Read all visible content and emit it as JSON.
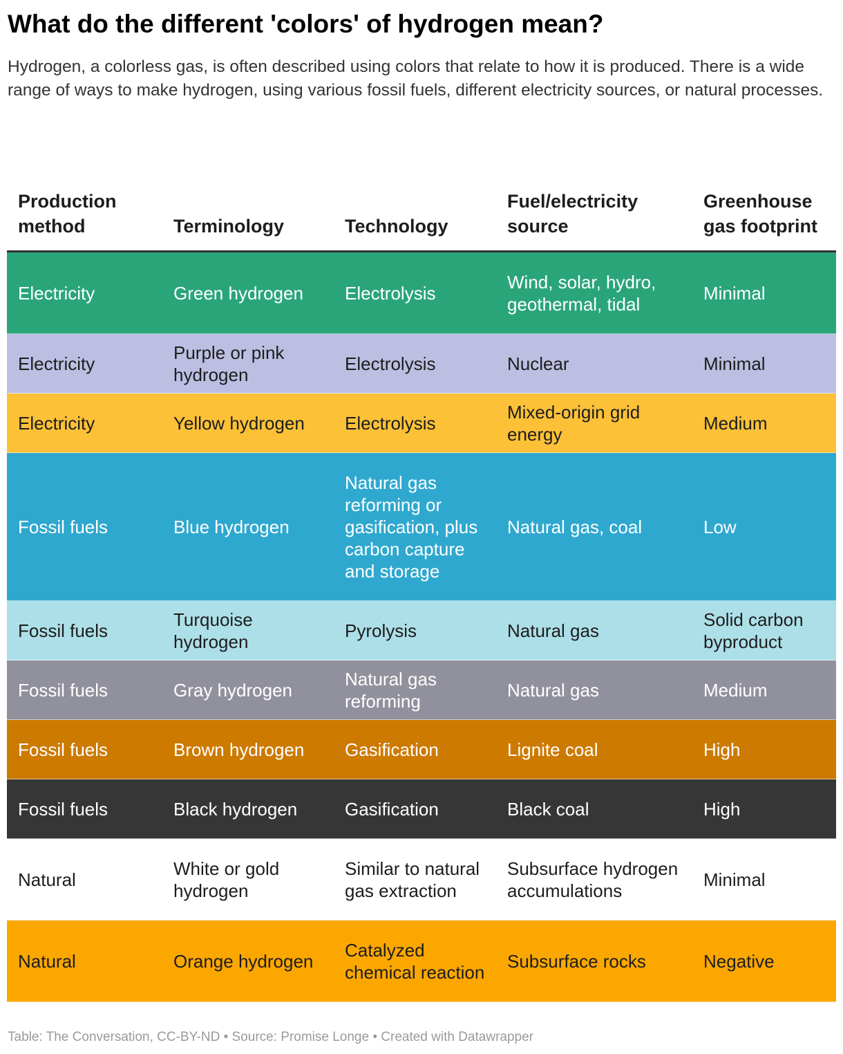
{
  "title": "What do the different 'colors' of hydrogen mean?",
  "subtitle": "Hydrogen, a colorless gas, is often described using colors that relate to how it is produced. There is a wide range of ways to make hydrogen, using various fossil fuels, different electricity sources, or natural processes.",
  "footer": "Table: The Conversation, CC-BY-ND • Source: Promise Longe • Created with Datawrapper",
  "chart_data": {
    "type": "table",
    "columns": [
      "Production method",
      "Terminology",
      "Technology",
      "Fuel/electricity source",
      "Greenhouse gas footprint"
    ],
    "rows": [
      {
        "cells": [
          "Electricity",
          "Green hydrogen",
          "Electrolysis",
          "Wind, solar, hydro, geothermal, tidal",
          "Minimal"
        ],
        "bg": "#2aa57a",
        "fg": "#ffffff"
      },
      {
        "cells": [
          "Electricity",
          "Purple or pink hydrogen",
          "Electrolysis",
          "Nuclear",
          "Minimal"
        ],
        "bg": "#bcbfe2",
        "fg": "#1d1d1d"
      },
      {
        "cells": [
          "Electricity",
          "Yellow hydrogen",
          "Electrolysis",
          "Mixed-origin grid energy",
          "Medium"
        ],
        "bg": "#fcc137",
        "fg": "#1d1d1d"
      },
      {
        "cells": [
          "Fossil fuels",
          "Blue hydrogen",
          "Natural gas reforming or gasification, plus carbon capture and storage",
          "Natural gas, coal",
          "Low"
        ],
        "bg": "#2fa8cf",
        "fg": "#ffffff"
      },
      {
        "cells": [
          "Fossil fuels",
          "Turquoise hydrogen",
          "Pyrolysis",
          "Natural gas",
          "Solid carbon byproduct"
        ],
        "bg": "#addfe8",
        "fg": "#1d1d1d"
      },
      {
        "cells": [
          "Fossil fuels",
          "Gray hydrogen",
          "Natural gas reforming",
          "Natural gas",
          "Medium"
        ],
        "bg": "#91919d",
        "fg": "#ffffff"
      },
      {
        "cells": [
          "Fossil fuels",
          "Brown hydrogen",
          "Gasification",
          "Lignite coal",
          "High"
        ],
        "bg": "#cd7a00",
        "fg": "#ffffff"
      },
      {
        "cells": [
          "Fossil fuels",
          "Black hydrogen",
          "Gasification",
          "Black coal",
          "High"
        ],
        "bg": "#363636",
        "fg": "#ffffff"
      },
      {
        "cells": [
          "Natural",
          "White or gold hydrogen",
          "Similar to natural gas extraction",
          "Subsurface hydrogen accumulations",
          "Minimal"
        ],
        "bg": "#ffffff",
        "fg": "#1d1d1d"
      },
      {
        "cells": [
          "Natural",
          "Orange hydrogen",
          "Catalyzed chemical reaction",
          "Subsurface rocks",
          "Negative"
        ],
        "bg": "#fca700",
        "fg": "#1d1d1d"
      }
    ]
  }
}
